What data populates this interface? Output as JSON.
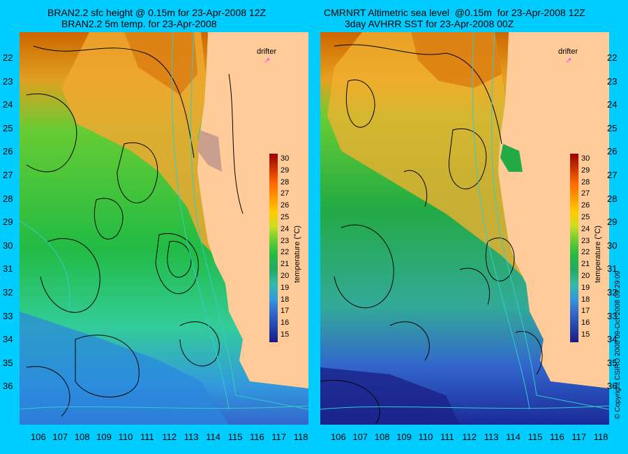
{
  "left": {
    "title_line1": "BRAN2.2 sfc height @ 0.15m for 23-Apr-2008 12Z",
    "title_line2": "BRAN2.2 5m temp. for 23-Apr-2008"
  },
  "right": {
    "title_line1": "CMRNRT Altimetric sea level  @0.15m  for 23-Apr-2008 12Z",
    "title_line2": "3day AVHRR SST for 23-Apr-2008 00Z"
  },
  "drifter_label": "drifter",
  "colorbar": {
    "title": "temperature (°C)",
    "ticks": [
      "30",
      "29",
      "28",
      "27",
      "26",
      "25",
      "24",
      "23",
      "22",
      "21",
      "20",
      "19",
      "18",
      "17",
      "16",
      "15"
    ]
  },
  "lat_ticks": [
    "22",
    "23",
    "24",
    "25",
    "26",
    "27",
    "28",
    "29",
    "30",
    "31",
    "32",
    "33",
    "34",
    "35",
    "36"
  ],
  "lon_ticks": [
    "106",
    "107",
    "108",
    "109",
    "110",
    "111",
    "112",
    "113",
    "114",
    "115",
    "116",
    "117",
    "118"
  ],
  "copyright": "© Copyright CSIRO 2008   09-Oct-2008 09:29:09",
  "colors": {
    "background": "#00ccff",
    "land": "#ffcc99",
    "contour": "#000000",
    "bathymetry": "#33cccc",
    "drifter": "#ff33ff"
  }
}
